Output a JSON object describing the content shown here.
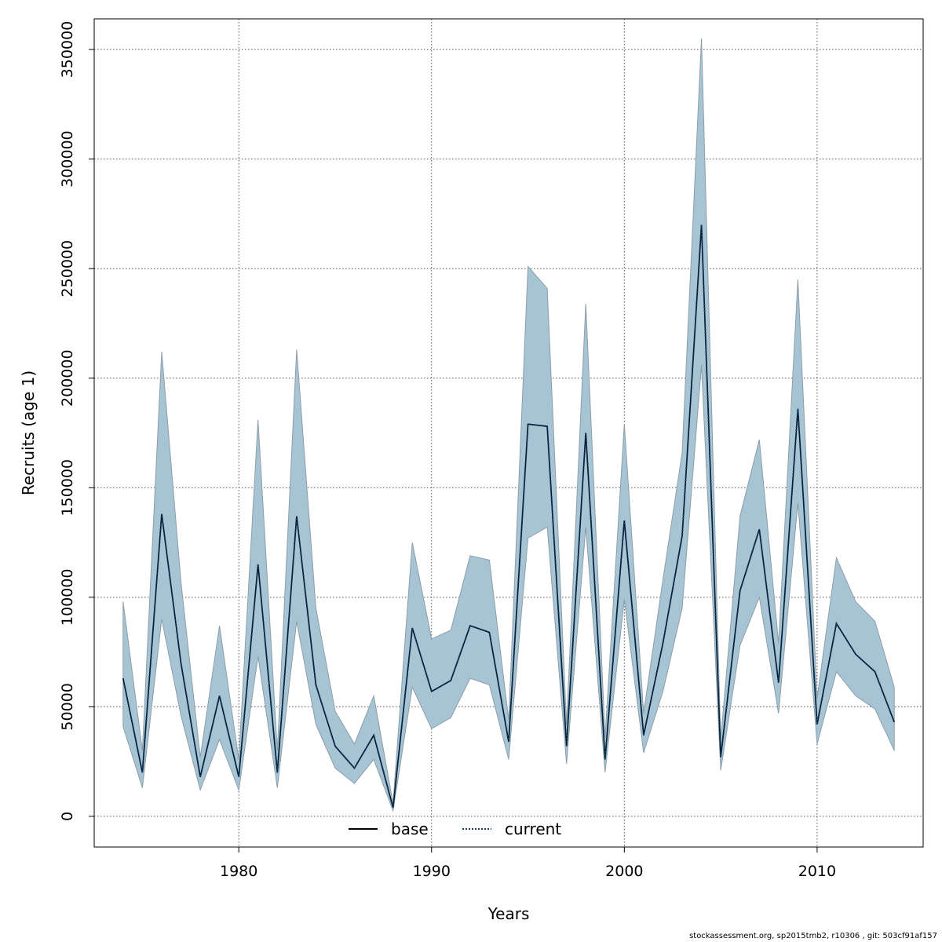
{
  "footer_text": "stockassessment.org, sp2015tmb2, r10306 , git: 503cf91af157",
  "colors": {
    "ci_fill": "#a6c4d4",
    "ci_edge": "#8c9ea8",
    "base_line": "#000000",
    "current_line": "#0b3d6b",
    "grid": "#555555"
  },
  "chart_data": {
    "type": "line",
    "xlabel": "Years",
    "ylabel": "Recruits (age 1)",
    "xlim": [
      1972.5,
      2015.5
    ],
    "ylim": [
      -14000,
      364000
    ],
    "x_ticks": [
      1980,
      1990,
      2000,
      2010
    ],
    "y_ticks": [
      0,
      50000,
      100000,
      150000,
      200000,
      250000,
      300000,
      350000
    ],
    "grid": true,
    "legend_position": "bottom-center",
    "legend": [
      {
        "label": "base",
        "style": "solid",
        "color": "#000000"
      },
      {
        "label": "current",
        "style": "dotted",
        "color": "#0b3d6b"
      }
    ],
    "x": [
      1974,
      1975,
      1976,
      1977,
      1978,
      1979,
      1980,
      1981,
      1982,
      1983,
      1984,
      1985,
      1986,
      1987,
      1988,
      1989,
      1990,
      1991,
      1992,
      1993,
      1994,
      1995,
      1996,
      1997,
      1998,
      1999,
      2000,
      2001,
      2002,
      2003,
      2004,
      2005,
      2006,
      2007,
      2008,
      2009,
      2010,
      2011,
      2012,
      2013,
      2014
    ],
    "series": [
      {
        "name": "base",
        "values": [
          63000,
          20000,
          138000,
          70000,
          18000,
          55000,
          18000,
          115000,
          20000,
          137000,
          60000,
          32000,
          22000,
          37000,
          4000,
          86000,
          57000,
          62000,
          87000,
          84000,
          34000,
          179000,
          178000,
          32000,
          175000,
          26000,
          135000,
          37000,
          79000,
          128000,
          270000,
          27000,
          103000,
          131000,
          61000,
          186000,
          42000,
          88000,
          74000,
          66000,
          43000
        ]
      },
      {
        "name": "current",
        "values": [
          63000,
          20000,
          138000,
          70000,
          18000,
          55000,
          18000,
          115000,
          20000,
          137000,
          60000,
          32000,
          22000,
          37000,
          4000,
          86000,
          57000,
          62000,
          87000,
          84000,
          34000,
          179000,
          178000,
          32000,
          175000,
          26000,
          135000,
          37000,
          79000,
          128000,
          270000,
          27000,
          103000,
          131000,
          61000,
          186000,
          42000,
          88000,
          74000,
          66000,
          43000
        ]
      }
    ],
    "ci_lower": [
      41000,
      13000,
      90000,
      46000,
      12000,
      35000,
      12000,
      73000,
      13000,
      89000,
      42000,
      22000,
      15000,
      26000,
      2500,
      59000,
      40000,
      45000,
      63000,
      60000,
      26000,
      127000,
      132000,
      24000,
      132000,
      20000,
      99000,
      29000,
      57000,
      95000,
      206000,
      21000,
      78000,
      100000,
      47000,
      143000,
      33000,
      66000,
      55000,
      49000,
      30000
    ],
    "ci_upper": [
      98000,
      30000,
      212000,
      107000,
      27000,
      87000,
      26000,
      181000,
      30000,
      213000,
      95000,
      48000,
      33000,
      55000,
      6000,
      125000,
      81000,
      85000,
      119000,
      117000,
      44000,
      251000,
      241000,
      42000,
      234000,
      36000,
      179000,
      47000,
      108000,
      166000,
      355000,
      35000,
      137000,
      172000,
      79000,
      245000,
      54000,
      118000,
      98000,
      89000,
      59000
    ]
  }
}
